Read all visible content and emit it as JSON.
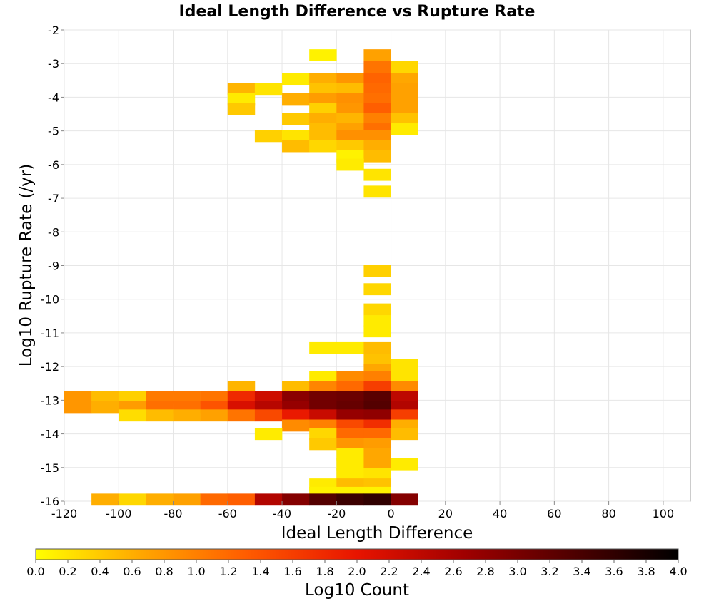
{
  "chart_data": {
    "type": "heatmap",
    "title": "Ideal Length Difference vs Rupture Rate",
    "xlabel": "Ideal Length Difference",
    "ylabel": "Log10 Rupture Rate (/yr)",
    "colorbar_label": "Log10 Count",
    "xlim": [
      -120,
      110
    ],
    "ylim": [
      -16,
      -2
    ],
    "x_ticks": [
      -120,
      -100,
      -80,
      -60,
      -40,
      -20,
      0,
      20,
      40,
      60,
      80,
      100
    ],
    "y_ticks": [
      -2,
      -3,
      -4,
      -5,
      -6,
      -7,
      -8,
      -9,
      -10,
      -11,
      -12,
      -13,
      -14,
      -15,
      -16
    ],
    "colorbar_range": [
      0.0,
      4.0
    ],
    "colorbar_ticks": [
      "0.0",
      "0.2",
      "0.4",
      "0.6",
      "0.8",
      "1.0",
      "1.2",
      "1.4",
      "1.6",
      "1.8",
      "2.0",
      "2.2",
      "2.4",
      "2.6",
      "2.8",
      "3.0",
      "3.2",
      "3.4",
      "3.6",
      "3.8",
      "4.0"
    ],
    "colormap": [
      "#ffff00",
      "#ffa500",
      "#ff5a00",
      "#e81400",
      "#a00000",
      "#500000",
      "#000000"
    ],
    "grid": true,
    "bin_width": 10,
    "bin_height": 0.35,
    "cells": [
      {
        "x": -25,
        "y": -2.75,
        "v": 0.1
      },
      {
        "x": -5,
        "y": -2.75,
        "v": 0.7
      },
      {
        "x": -5,
        "y": -3.1,
        "v": 1.1
      },
      {
        "x": 5,
        "y": -3.1,
        "v": 0.3
      },
      {
        "x": -35,
        "y": -3.45,
        "v": 0.15
      },
      {
        "x": -25,
        "y": -3.45,
        "v": 0.6
      },
      {
        "x": -15,
        "y": -3.45,
        "v": 0.8
      },
      {
        "x": -5,
        "y": -3.45,
        "v": 1.25
      },
      {
        "x": 5,
        "y": -3.45,
        "v": 0.65
      },
      {
        "x": -55,
        "y": -3.75,
        "v": 0.55
      },
      {
        "x": -45,
        "y": -3.75,
        "v": 0.2
      },
      {
        "x": -25,
        "y": -3.75,
        "v": 0.45
      },
      {
        "x": -15,
        "y": -3.75,
        "v": 0.5
      },
      {
        "x": -5,
        "y": -3.75,
        "v": 1.2
      },
      {
        "x": 5,
        "y": -3.75,
        "v": 0.7
      },
      {
        "x": -55,
        "y": -4.05,
        "v": 0.15
      },
      {
        "x": -35,
        "y": -4.05,
        "v": 0.6
      },
      {
        "x": -25,
        "y": -4.05,
        "v": 0.75
      },
      {
        "x": -15,
        "y": -4.05,
        "v": 0.85
      },
      {
        "x": -5,
        "y": -4.05,
        "v": 1.15
      },
      {
        "x": 5,
        "y": -4.05,
        "v": 0.7
      },
      {
        "x": -55,
        "y": -4.35,
        "v": 0.4
      },
      {
        "x": -25,
        "y": -4.35,
        "v": 0.35
      },
      {
        "x": -15,
        "y": -4.35,
        "v": 0.8
      },
      {
        "x": -5,
        "y": -4.35,
        "v": 1.3
      },
      {
        "x": 5,
        "y": -4.35,
        "v": 0.7
      },
      {
        "x": -35,
        "y": -4.65,
        "v": 0.4
      },
      {
        "x": -25,
        "y": -4.65,
        "v": 0.6
      },
      {
        "x": -15,
        "y": -4.65,
        "v": 0.55
      },
      {
        "x": -5,
        "y": -4.65,
        "v": 1.0
      },
      {
        "x": 5,
        "y": -4.65,
        "v": 0.45
      },
      {
        "x": -25,
        "y": -4.95,
        "v": 0.5
      },
      {
        "x": -15,
        "y": -4.95,
        "v": 0.7
      },
      {
        "x": -5,
        "y": -4.95,
        "v": 1.15
      },
      {
        "x": 5,
        "y": -4.95,
        "v": 0.15
      },
      {
        "x": -45,
        "y": -5.15,
        "v": 0.35
      },
      {
        "x": -35,
        "y": -5.15,
        "v": 0.2
      },
      {
        "x": -25,
        "y": -5.15,
        "v": 0.5
      },
      {
        "x": -15,
        "y": -5.15,
        "v": 0.85
      },
      {
        "x": -5,
        "y": -5.15,
        "v": 0.85
      },
      {
        "x": -35,
        "y": -5.45,
        "v": 0.5
      },
      {
        "x": -25,
        "y": -5.45,
        "v": 0.3
      },
      {
        "x": -15,
        "y": -5.45,
        "v": 0.4
      },
      {
        "x": -5,
        "y": -5.45,
        "v": 0.6
      },
      {
        "x": -15,
        "y": -5.75,
        "v": 0.1
      },
      {
        "x": -5,
        "y": -5.75,
        "v": 0.5
      },
      {
        "x": -15,
        "y": -6.0,
        "v": 0.15
      },
      {
        "x": -5,
        "y": -6.3,
        "v": 0.2
      },
      {
        "x": -5,
        "y": -6.8,
        "v": 0.2
      },
      {
        "x": -5,
        "y": -9.15,
        "v": 0.35
      },
      {
        "x": -5,
        "y": -9.7,
        "v": 0.3
      },
      {
        "x": -5,
        "y": -10.3,
        "v": 0.3
      },
      {
        "x": -5,
        "y": -10.65,
        "v": 0.15
      },
      {
        "x": -5,
        "y": -10.95,
        "v": 0.15
      },
      {
        "x": -25,
        "y": -11.45,
        "v": 0.15
      },
      {
        "x": -15,
        "y": -11.45,
        "v": 0.15
      },
      {
        "x": -5,
        "y": -11.45,
        "v": 0.5
      },
      {
        "x": -5,
        "y": -11.8,
        "v": 0.45
      },
      {
        "x": 5,
        "y": -11.95,
        "v": 0.2
      },
      {
        "x": -5,
        "y": -12.1,
        "v": 0.65
      },
      {
        "x": -25,
        "y": -12.3,
        "v": 0.15
      },
      {
        "x": -15,
        "y": -12.3,
        "v": 0.9
      },
      {
        "x": -5,
        "y": -12.3,
        "v": 1.0
      },
      {
        "x": 5,
        "y": -12.3,
        "v": 0.2
      },
      {
        "x": -55,
        "y": -12.6,
        "v": 0.55
      },
      {
        "x": -35,
        "y": -12.6,
        "v": 0.5
      },
      {
        "x": -25,
        "y": -12.6,
        "v": 0.95
      },
      {
        "x": -15,
        "y": -12.6,
        "v": 1.2
      },
      {
        "x": -5,
        "y": -12.6,
        "v": 1.6
      },
      {
        "x": 5,
        "y": -12.6,
        "v": 0.9
      },
      {
        "x": -115,
        "y": -12.9,
        "v": 0.8
      },
      {
        "x": -105,
        "y": -12.9,
        "v": 0.5
      },
      {
        "x": -95,
        "y": -12.9,
        "v": 0.35
      },
      {
        "x": -85,
        "y": -12.9,
        "v": 1.05
      },
      {
        "x": -75,
        "y": -12.9,
        "v": 1.05
      },
      {
        "x": -65,
        "y": -12.9,
        "v": 1.1
      },
      {
        "x": -55,
        "y": -12.9,
        "v": 1.8
      },
      {
        "x": -45,
        "y": -12.9,
        "v": 2.25
      },
      {
        "x": -35,
        "y": -12.9,
        "v": 2.85
      },
      {
        "x": -25,
        "y": -12.9,
        "v": 3.05
      },
      {
        "x": -15,
        "y": -12.9,
        "v": 3.1
      },
      {
        "x": -5,
        "y": -12.9,
        "v": 3.25
      },
      {
        "x": 5,
        "y": -12.9,
        "v": 2.4
      },
      {
        "x": -115,
        "y": -13.2,
        "v": 0.8
      },
      {
        "x": -105,
        "y": -13.2,
        "v": 0.6
      },
      {
        "x": -95,
        "y": -13.2,
        "v": 0.75
      },
      {
        "x": -85,
        "y": -13.2,
        "v": 1.15
      },
      {
        "x": -75,
        "y": -13.2,
        "v": 1.15
      },
      {
        "x": -65,
        "y": -13.2,
        "v": 1.4
      },
      {
        "x": -55,
        "y": -13.2,
        "v": 2.15
      },
      {
        "x": -45,
        "y": -13.2,
        "v": 2.45
      },
      {
        "x": -35,
        "y": -13.2,
        "v": 2.75
      },
      {
        "x": -25,
        "y": -13.2,
        "v": 3.05
      },
      {
        "x": -15,
        "y": -13.2,
        "v": 3.15
      },
      {
        "x": -5,
        "y": -13.2,
        "v": 3.3
      },
      {
        "x": 5,
        "y": -13.2,
        "v": 2.5
      },
      {
        "x": -95,
        "y": -13.45,
        "v": 0.25
      },
      {
        "x": -85,
        "y": -13.45,
        "v": 0.5
      },
      {
        "x": -75,
        "y": -13.45,
        "v": 0.6
      },
      {
        "x": -65,
        "y": -13.45,
        "v": 0.7
      },
      {
        "x": -55,
        "y": -13.45,
        "v": 1.1
      },
      {
        "x": -45,
        "y": -13.45,
        "v": 1.5
      },
      {
        "x": -35,
        "y": -13.45,
        "v": 1.95
      },
      {
        "x": -25,
        "y": -13.45,
        "v": 2.3
      },
      {
        "x": -15,
        "y": -13.45,
        "v": 2.75
      },
      {
        "x": -5,
        "y": -13.45,
        "v": 2.8
      },
      {
        "x": 5,
        "y": -13.45,
        "v": 1.6
      },
      {
        "x": -35,
        "y": -13.75,
        "v": 0.9
      },
      {
        "x": -25,
        "y": -13.75,
        "v": 1.0
      },
      {
        "x": -15,
        "y": -13.75,
        "v": 1.5
      },
      {
        "x": -5,
        "y": -13.75,
        "v": 1.75
      },
      {
        "x": 5,
        "y": -13.75,
        "v": 0.6
      },
      {
        "x": -45,
        "y": -14.0,
        "v": 0.15
      },
      {
        "x": -25,
        "y": -14.0,
        "v": 0.3
      },
      {
        "x": -15,
        "y": -14.0,
        "v": 1.2
      },
      {
        "x": -5,
        "y": -14.0,
        "v": 1.2
      },
      {
        "x": 5,
        "y": -14.0,
        "v": 0.5
      },
      {
        "x": -25,
        "y": -14.3,
        "v": 0.4
      },
      {
        "x": -15,
        "y": -14.3,
        "v": 0.8
      },
      {
        "x": -5,
        "y": -14.3,
        "v": 0.75
      },
      {
        "x": -15,
        "y": -14.6,
        "v": 0.15
      },
      {
        "x": -5,
        "y": -14.6,
        "v": 0.65
      },
      {
        "x": -15,
        "y": -14.9,
        "v": 0.15
      },
      {
        "x": -5,
        "y": -14.9,
        "v": 0.65
      },
      {
        "x": 5,
        "y": -14.9,
        "v": 0.15
      },
      {
        "x": -15,
        "y": -15.2,
        "v": 0.15
      },
      {
        "x": -5,
        "y": -15.2,
        "v": 0.2
      },
      {
        "x": -25,
        "y": -15.5,
        "v": 0.15
      },
      {
        "x": -15,
        "y": -15.5,
        "v": 0.5
      },
      {
        "x": -5,
        "y": -15.5,
        "v": 0.45
      },
      {
        "x": -25,
        "y": -15.75,
        "v": 0.1
      },
      {
        "x": -15,
        "y": -15.75,
        "v": 0.1
      },
      {
        "x": -5,
        "y": -15.75,
        "v": 0.1
      },
      {
        "x": -105,
        "y": -15.95,
        "v": 0.6
      },
      {
        "x": -95,
        "y": -15.95,
        "v": 0.3
      },
      {
        "x": -85,
        "y": -15.95,
        "v": 0.6
      },
      {
        "x": -75,
        "y": -15.95,
        "v": 0.7
      },
      {
        "x": -65,
        "y": -15.95,
        "v": 1.2
      },
      {
        "x": -55,
        "y": -15.95,
        "v": 1.3
      },
      {
        "x": -45,
        "y": -15.95,
        "v": 2.5
      },
      {
        "x": -35,
        "y": -15.95,
        "v": 2.9
      },
      {
        "x": -25,
        "y": -15.95,
        "v": 3.3
      },
      {
        "x": -15,
        "y": -15.95,
        "v": 3.5
      },
      {
        "x": -5,
        "y": -15.95,
        "v": 3.6
      },
      {
        "x": 5,
        "y": -15.95,
        "v": 2.9
      }
    ]
  }
}
